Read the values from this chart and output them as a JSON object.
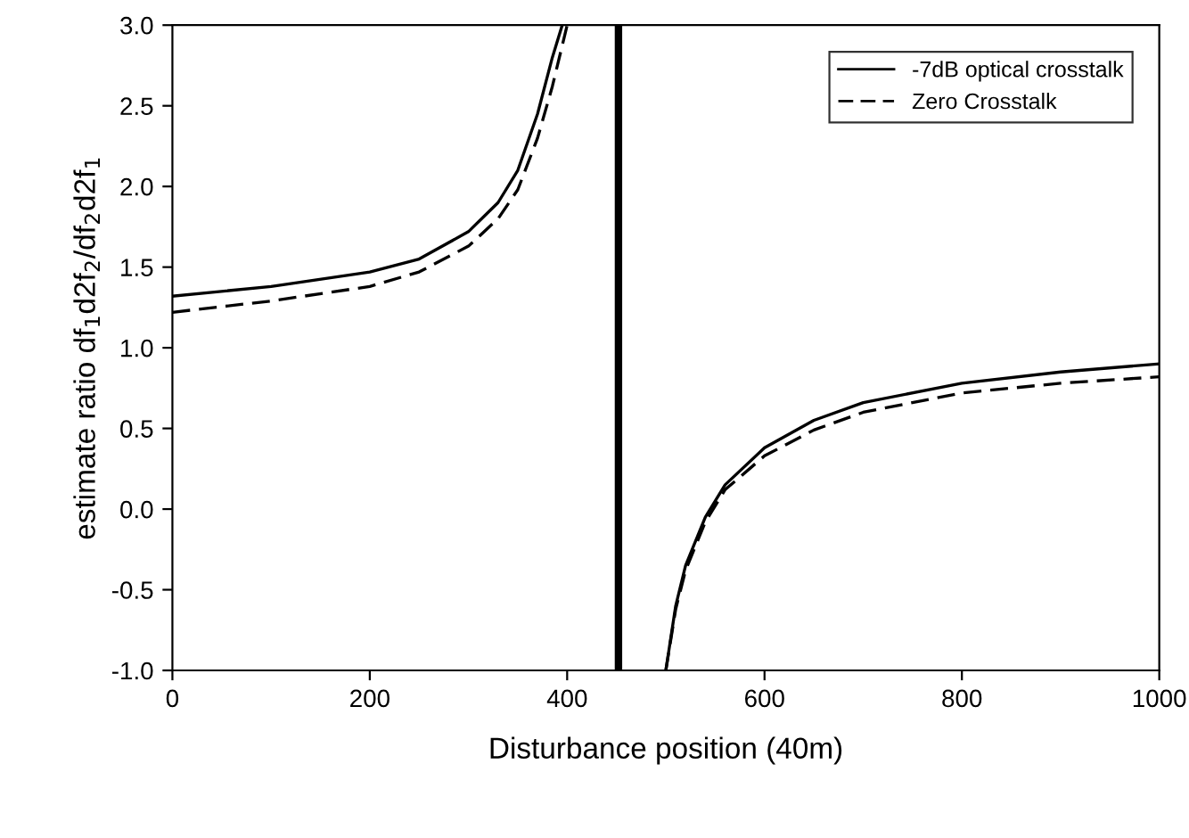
{
  "chart_data": {
    "type": "line",
    "xlabel": "Disturbance position (40m)",
    "ylabel": "estimate ratio df$_{1}$d2f$_{2}$/df$_{2}$d2f$_{1}$",
    "xlim": [
      0,
      1000
    ],
    "ylim": [
      -1.0,
      3.0
    ],
    "xticks": [
      0,
      200,
      400,
      600,
      800,
      1000
    ],
    "yticks": [
      {
        "value": -1.0,
        "label": "-1.0"
      },
      {
        "value": -0.5,
        "label": "-0.5"
      },
      {
        "value": 0.0,
        "label": "0.0"
      },
      {
        "value": 0.5,
        "label": "0.5"
      },
      {
        "value": 1.0,
        "label": "1.0"
      },
      {
        "value": 1.5,
        "label": "1.5"
      },
      {
        "value": 2.0,
        "label": "2.0"
      },
      {
        "value": 2.5,
        "label": "2.5"
      },
      {
        "value": 3.0,
        "label": "3.0"
      }
    ],
    "grid": false,
    "legend": "top right",
    "marker": "none",
    "ref_lines": [
      {
        "axis": "x",
        "value": 452,
        "color": "#000000"
      }
    ],
    "series": [
      {
        "name": "-7dB optical crosstalk",
        "color": "#000000",
        "line_style": "solid",
        "x": [
          0,
          100,
          200,
          250,
          300,
          330,
          350,
          370,
          385,
          395,
          452,
          500,
          510,
          520,
          540,
          560,
          600,
          650,
          700,
          800,
          900,
          1000
        ],
        "values": [
          1.32,
          1.38,
          1.47,
          1.55,
          1.72,
          1.9,
          2.1,
          2.45,
          2.8,
          3.0,
          null,
          -1.0,
          -0.6,
          -0.35,
          -0.05,
          0.15,
          0.38,
          0.55,
          0.66,
          0.78,
          0.85,
          0.9
        ]
      },
      {
        "name": "Zero Crosstalk",
        "color": "#000000",
        "line_style": "dashed",
        "x": [
          0,
          100,
          200,
          250,
          300,
          330,
          350,
          370,
          385,
          400,
          452,
          500,
          510,
          520,
          540,
          560,
          600,
          650,
          700,
          800,
          900,
          1000
        ],
        "values": [
          1.22,
          1.29,
          1.38,
          1.47,
          1.63,
          1.8,
          1.98,
          2.3,
          2.62,
          3.0,
          null,
          -1.0,
          -0.62,
          -0.38,
          -0.08,
          0.12,
          0.33,
          0.49,
          0.6,
          0.72,
          0.78,
          0.82
        ]
      }
    ]
  }
}
